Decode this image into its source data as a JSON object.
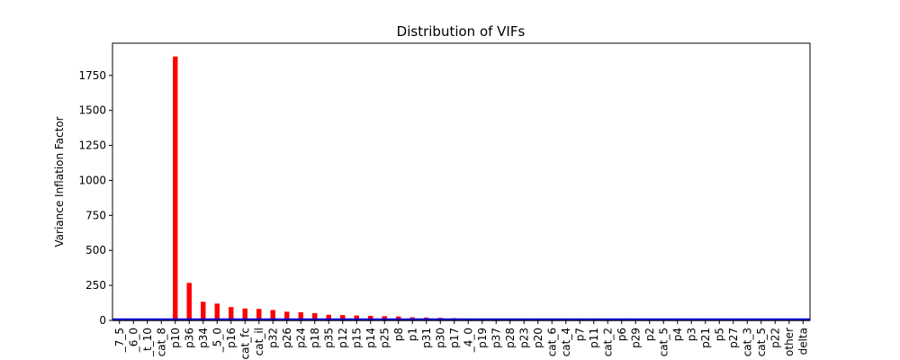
{
  "chart_data": {
    "type": "bar",
    "title": "Distribution of VIFs",
    "xlabel": "",
    "ylabel": "Variance Inflation Factor",
    "ylim": [
      0,
      1980
    ],
    "grid": false,
    "yticks": [
      0,
      250,
      500,
      750,
      1000,
      1250,
      1500,
      1750
    ],
    "categories": [
      "_7_5",
      "_6_0",
      "_t_10",
      "cat_8",
      "p10",
      "p36",
      "p34",
      "_5_0",
      "p16",
      "cat_fc",
      "cat_il",
      "p32",
      "p26",
      "p24",
      "p18",
      "p35",
      "p12",
      "p15",
      "p14",
      "p25",
      "p8",
      "p1",
      "p31",
      "p30",
      "p17",
      "_4_0",
      "p19",
      "p37",
      "p28",
      "p23",
      "p20",
      "cat_6",
      "cat_4",
      "p7",
      "p11",
      "cat_2",
      "p6",
      "p29",
      "p2",
      "cat_5",
      "p4",
      "p3",
      "p21",
      "p5",
      "p27",
      "cat_3",
      "cat_5",
      "p22",
      "other",
      "delta"
    ],
    "series": [
      {
        "color": "#ff0000",
        "values": [
          0,
          0,
          0,
          0,
          1885,
          268,
          133,
          120,
          95,
          85,
          82,
          74,
          62,
          58,
          52,
          40,
          38,
          35,
          32,
          30,
          28,
          22,
          20,
          18,
          16,
          12,
          10,
          8,
          7,
          6,
          6,
          5,
          5,
          5,
          5,
          4,
          4,
          4,
          4,
          4,
          3,
          3,
          3,
          3,
          3,
          3,
          2,
          2,
          1,
          1
        ]
      }
    ],
    "reference_lines": [
      {
        "y": 10,
        "color": "#0000ff"
      },
      {
        "y": 0,
        "color": "#000080"
      }
    ]
  }
}
